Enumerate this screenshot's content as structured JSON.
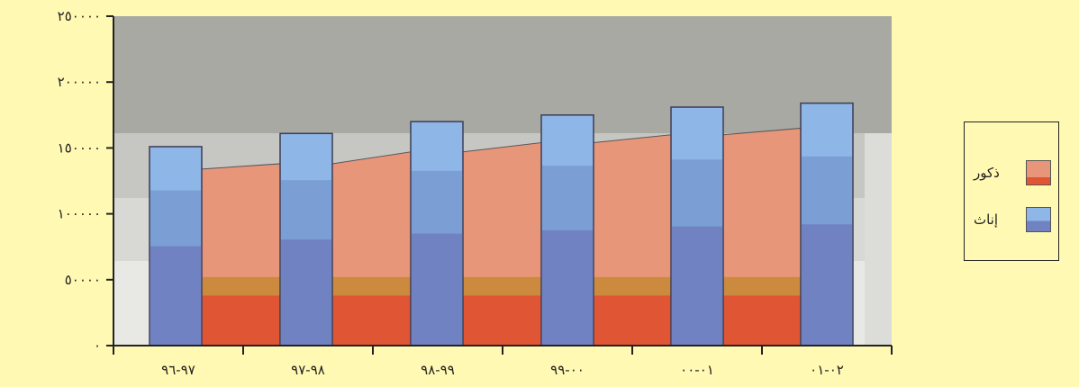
{
  "chart_data": {
    "type": "bar",
    "title": "",
    "xlabel": "",
    "ylabel": "",
    "ylim": [
      0,
      250000
    ],
    "y_ticks": [
      "٠",
      "٥٠٠٠٠",
      "١٠٠٠٠٠",
      "١٥٠٠٠٠",
      "٢٠٠٠٠٠",
      "٢٥٠٠٠٠"
    ],
    "y_tick_values": [
      0,
      50000,
      100000,
      150000,
      200000,
      250000
    ],
    "categories": [
      "٩٧-٩٦",
      "٩٨-٩٧",
      "٩٩-٩٨",
      "٠٠-٩٩",
      "٠١-٠٠",
      "٠٢-٠١"
    ],
    "series": [
      {
        "name": "ذكور",
        "values": [
          134000,
          138000,
          147000,
          154000,
          160000,
          165000
        ]
      },
      {
        "name": "إناث",
        "values": [
          151000,
          161000,
          170000,
          175000,
          181000,
          184000
        ]
      }
    ],
    "legend_position": "right",
    "colors": {
      "male": "#e8967a",
      "male_base": "#e05533",
      "female_top": "#8eb6e6",
      "female_mid": "#7b9fd5",
      "female_base": "#7082c2",
      "background": "#fff9b3",
      "plot_wall": "#a9a9a4"
    }
  },
  "legend": {
    "items": [
      {
        "label": "ذكور",
        "color": "#e8967a",
        "icon": "stacked-swatch"
      },
      {
        "label": "إناث",
        "color": "#8eb6e6",
        "icon": "stacked-swatch"
      }
    ]
  }
}
